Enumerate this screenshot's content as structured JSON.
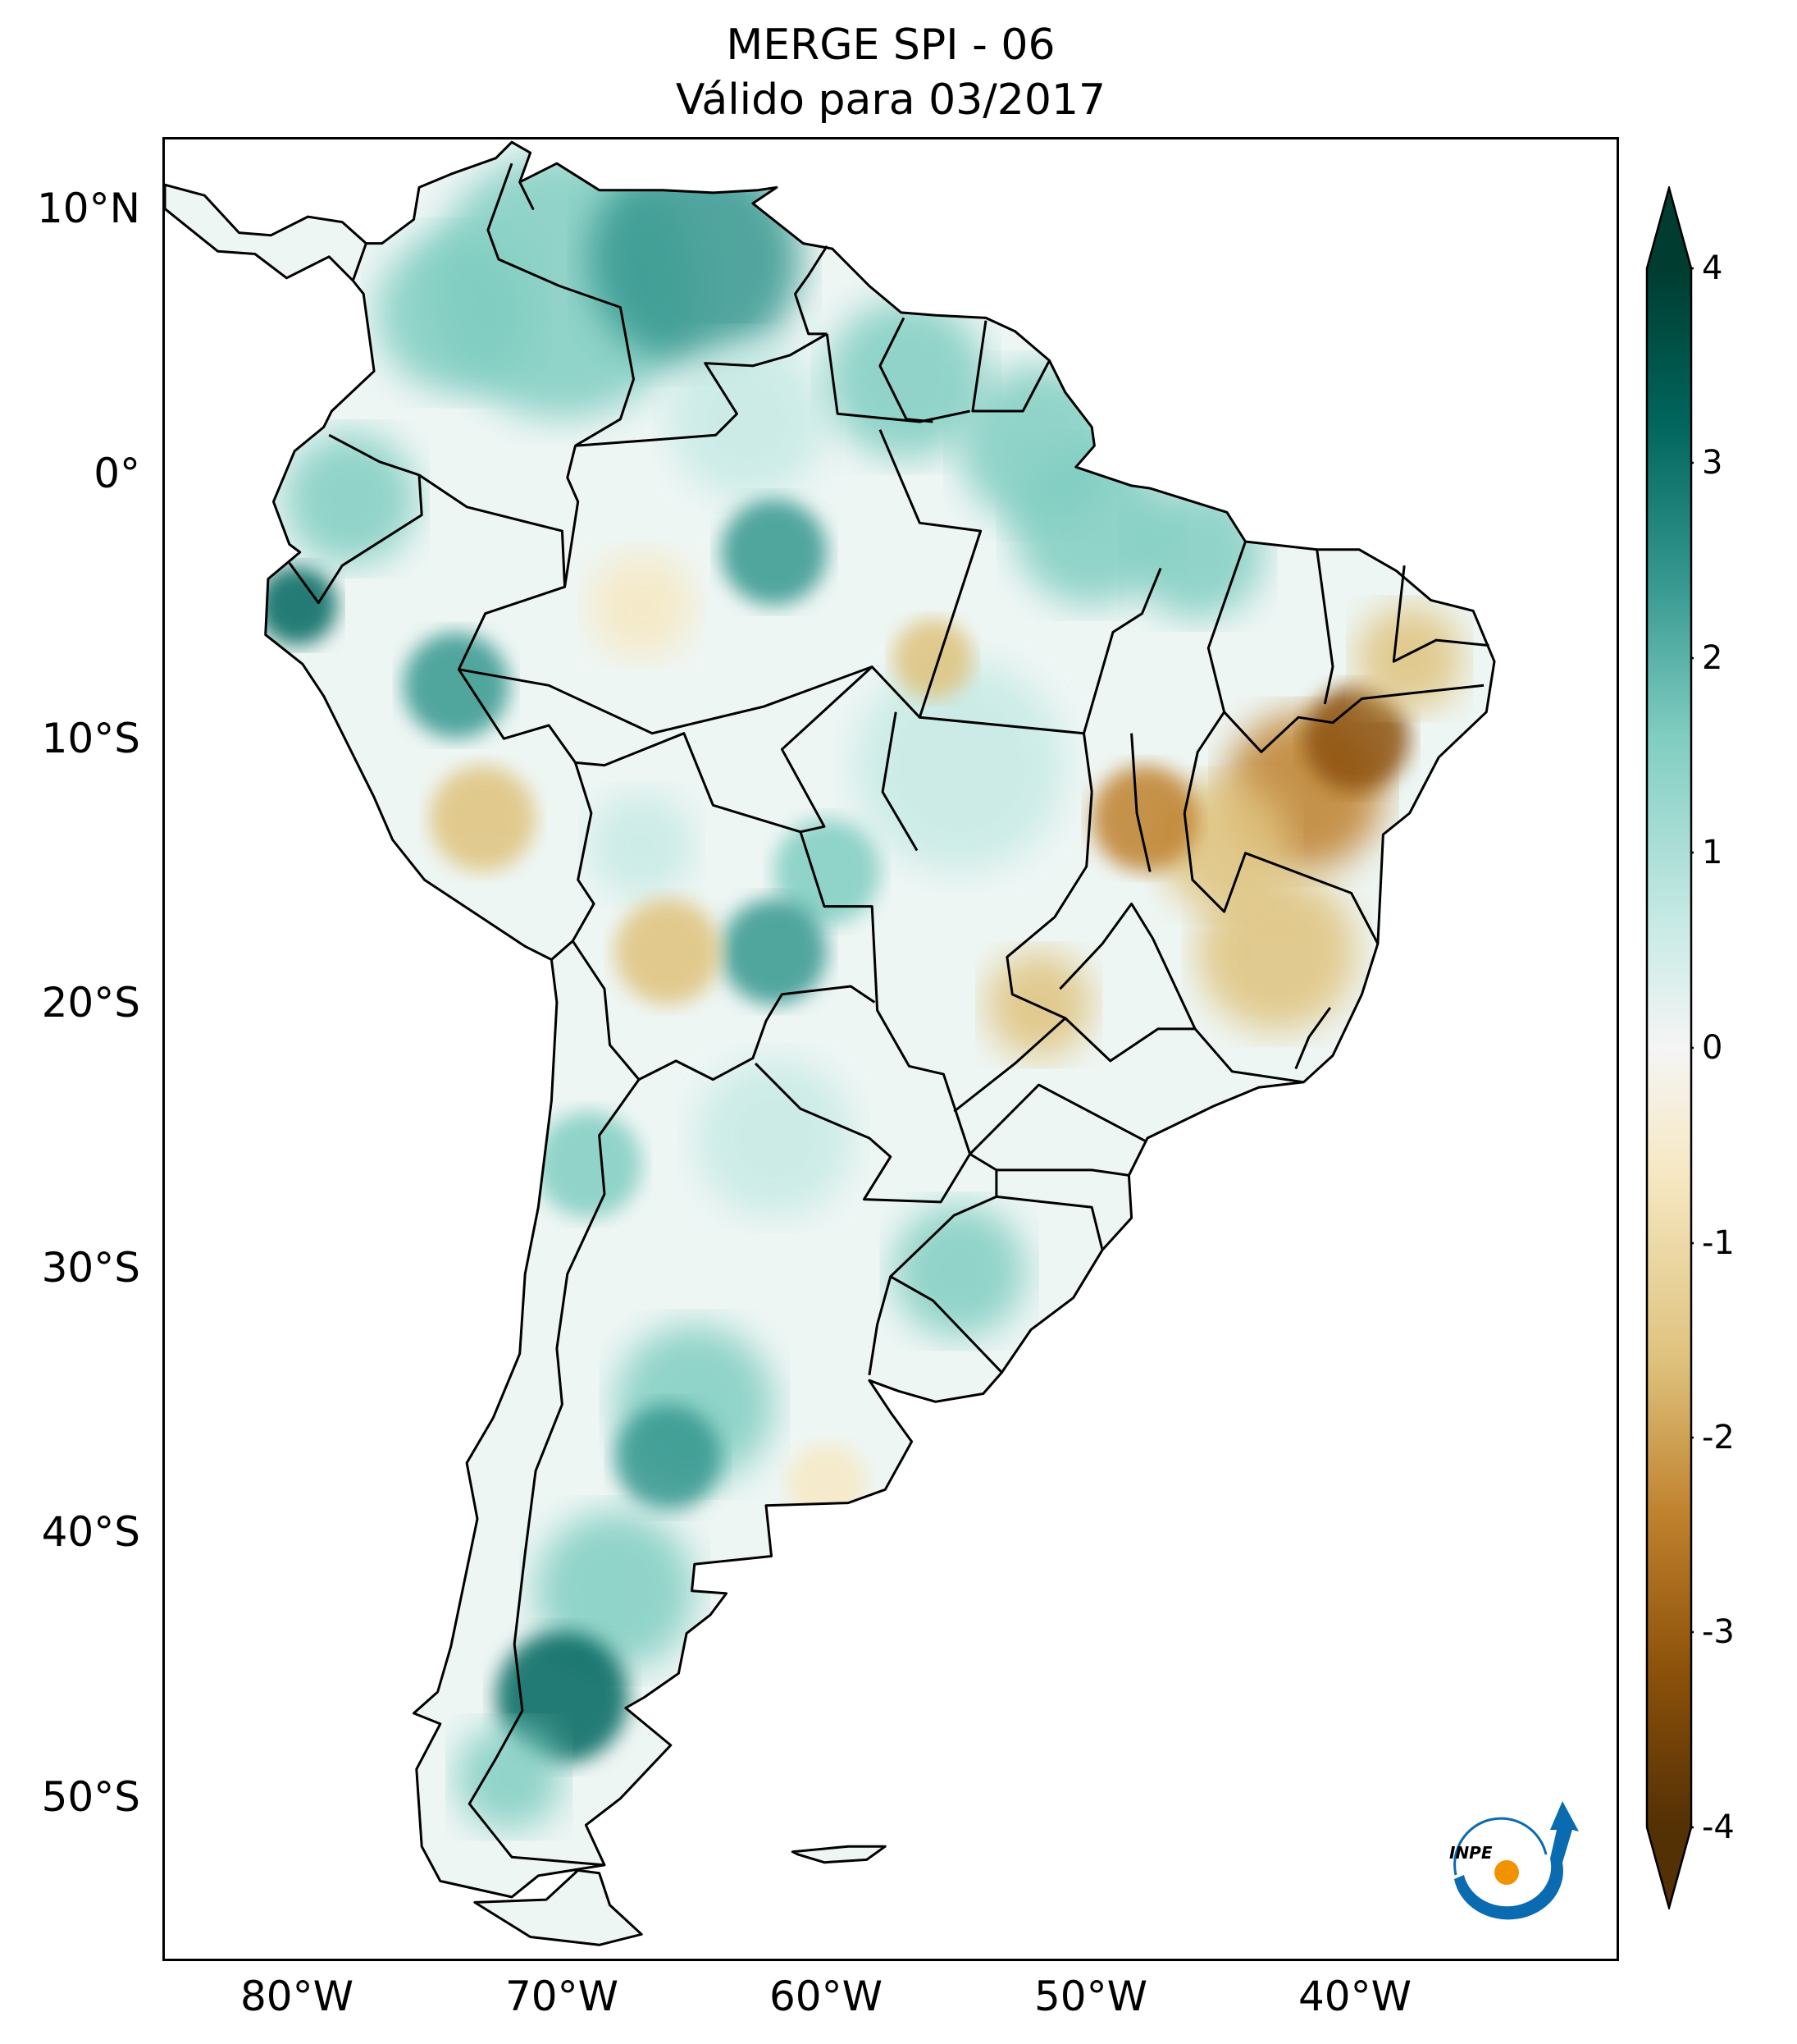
{
  "title": {
    "line1": "MERGE   SPI - 06",
    "line2": "Válido para 03/2017"
  },
  "axes": {
    "lat_ticks": [
      "10°N",
      "0°",
      "10°S",
      "20°S",
      "30°S",
      "40°S",
      "50°S"
    ],
    "lon_ticks": [
      "80°W",
      "70°W",
      "60°W",
      "50°W",
      "40°W"
    ],
    "lat_range": [
      -56,
      12.5
    ],
    "lon_range": [
      -85,
      -30
    ]
  },
  "colorbar": {
    "ticks": [
      "4",
      "3",
      "2",
      "1",
      "0",
      "-1",
      "-2",
      "-3",
      "-4"
    ],
    "range": [
      -4,
      4
    ],
    "extend": "both",
    "colormap": "BrBG",
    "colors": {
      "dry_extreme": "#543005",
      "dry_strong": "#8c510a",
      "dry_moderate": "#bf812d",
      "dry_mild": "#dfc27d",
      "dry_light": "#f6e8c3",
      "neutral": "#f5f5f5",
      "wet_light": "#c7eae5",
      "wet_mild": "#80cdc1",
      "wet_moderate": "#35978f",
      "wet_strong": "#01665e",
      "wet_extreme": "#003c30"
    }
  },
  "logo": {
    "text": "INPE",
    "colors": {
      "arrow": "#0a6bb0",
      "dot": "#f39200"
    }
  },
  "map": {
    "dry_regions": [
      "northeast-brazil",
      "minas-gerais",
      "goias",
      "bahia",
      "mato-grosso-do-sul",
      "bolivia-lowlands",
      "peru-south",
      "amazonas-central"
    ],
    "wet_regions": [
      "venezuela",
      "colombia",
      "ecuador-coast",
      "amapa",
      "para",
      "patagonia",
      "la-pampa",
      "chile-north",
      "paraguay-chaco"
    ]
  }
}
